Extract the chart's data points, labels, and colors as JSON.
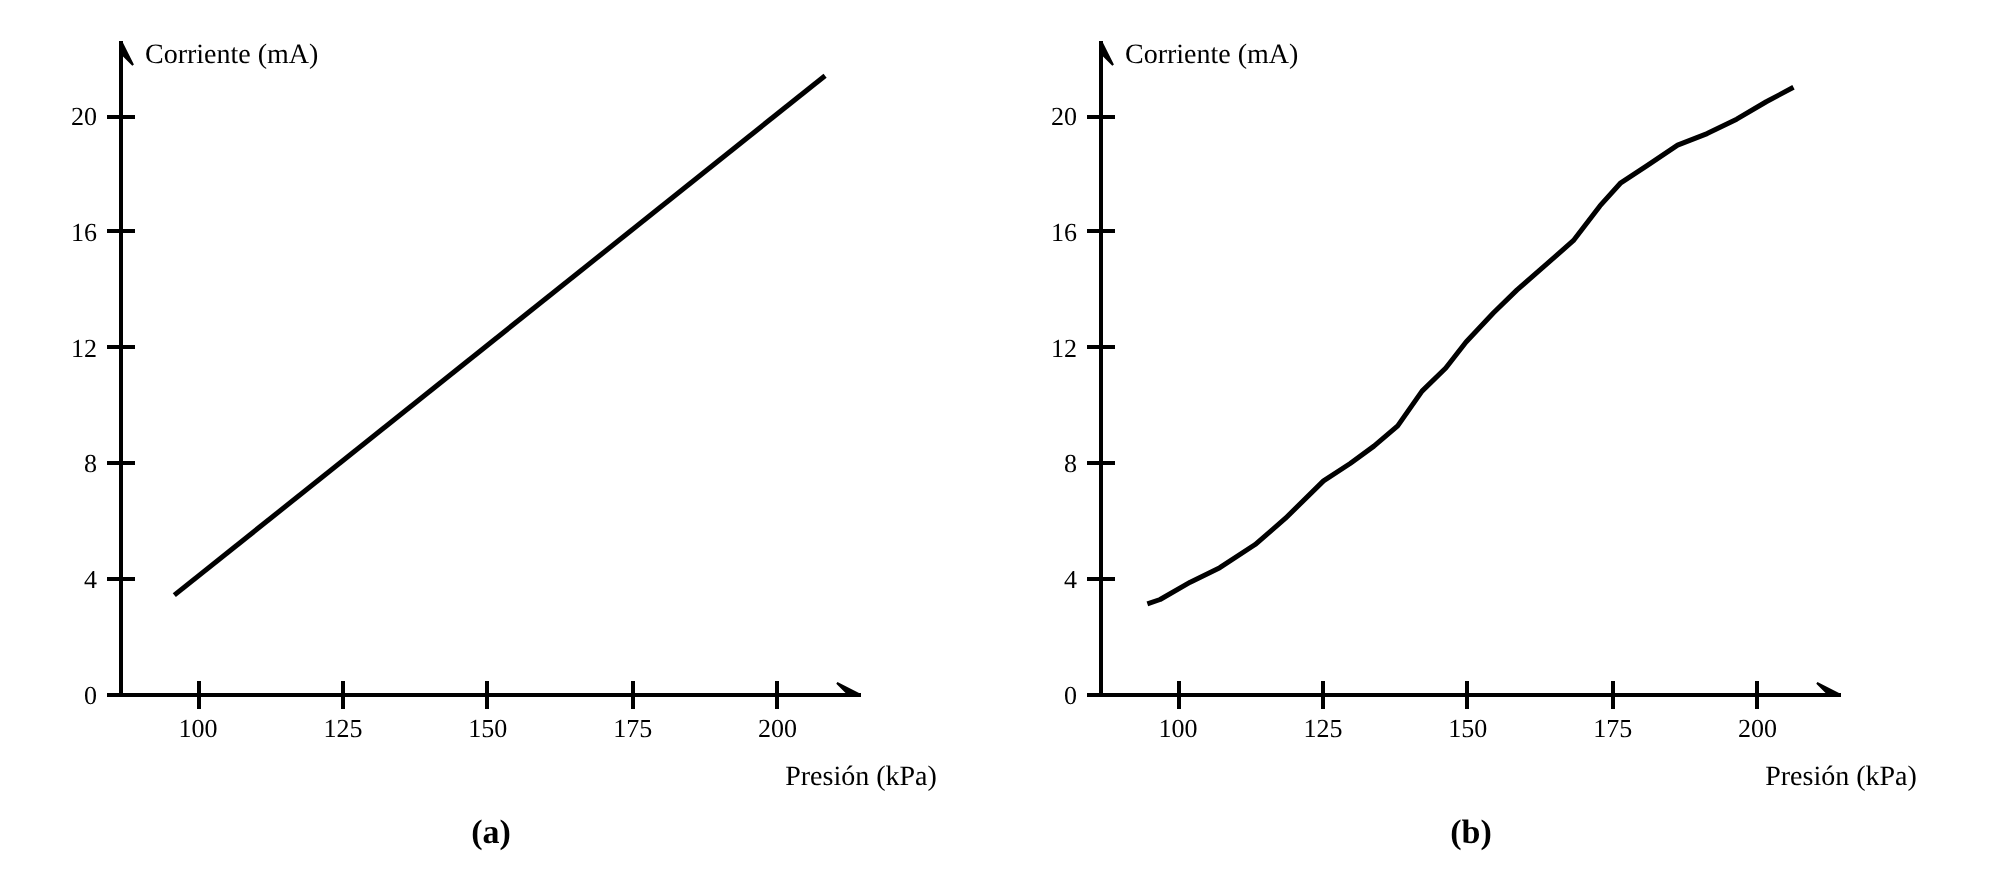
{
  "chart_data": [
    {
      "type": "line",
      "title": "(a)",
      "xlabel": "Presión (kPa)",
      "ylabel": "Corriente (mA)",
      "xlim": [
        86.7,
        214.4
      ],
      "ylim": [
        0,
        22.6
      ],
      "xticks": [
        100,
        125,
        150,
        175,
        200
      ],
      "yticks": [
        0,
        4,
        8,
        12,
        16,
        20
      ],
      "grid": false,
      "series": [
        {
          "color": "#000000",
          "x": [
            95.9,
            208.2
          ],
          "values": [
            3.45,
            21.4
          ]
        }
      ]
    },
    {
      "type": "line",
      "title": "(b)",
      "xlabel": "Presión (kPa)",
      "ylabel": "Corriente (mA)",
      "xlim": [
        86.7,
        214.4
      ],
      "ylim": [
        0,
        22.6
      ],
      "xticks": [
        100,
        125,
        150,
        175,
        200
      ],
      "yticks": [
        0,
        4,
        8,
        12,
        16,
        20
      ],
      "grid": false,
      "series": [
        {
          "color": "#000000",
          "x": [
            94.7,
            96.9,
            102.1,
            107.2,
            113.3,
            118.5,
            125.1,
            129.7,
            133.8,
            137.9,
            142.1,
            146.2,
            149.7,
            154.4,
            158.5,
            163.1,
            168.2,
            172.8,
            176.4,
            181.0,
            186.2,
            191.3,
            196.4,
            201.5,
            206.2
          ],
          "values": [
            3.15,
            3.3,
            3.9,
            4.4,
            5.2,
            6.1,
            7.4,
            8.0,
            8.6,
            9.3,
            10.5,
            11.3,
            12.2,
            13.2,
            14.0,
            14.8,
            15.7,
            16.9,
            17.7,
            18.3,
            19.0,
            19.4,
            19.9,
            20.5,
            21.0
          ]
        }
      ]
    }
  ]
}
